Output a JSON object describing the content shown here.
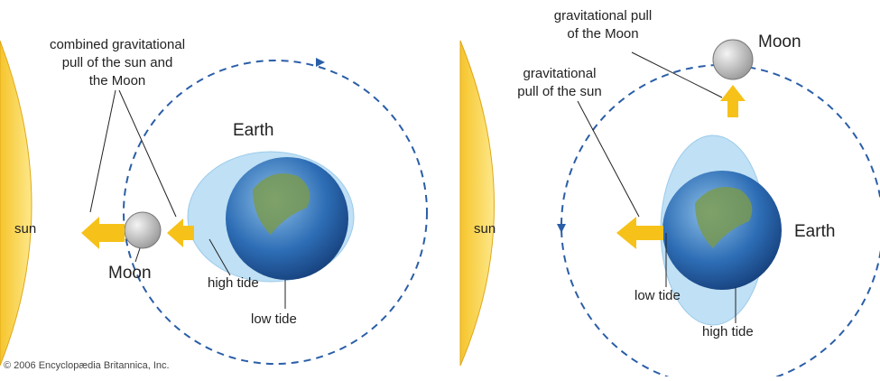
{
  "left": {
    "pull_label": [
      "combined gravitational",
      "pull of the sun and",
      "the Moon"
    ],
    "earth": "Earth",
    "sun": "sun",
    "moon": "Moon",
    "high_tide": "high tide",
    "low_tide": "low tide"
  },
  "right": {
    "moon_pull_label": [
      "gravitational pull",
      "of the Moon"
    ],
    "moon": "Moon",
    "sun_pull_label": [
      "gravitational",
      "pull of the sun"
    ],
    "sun": "sun",
    "earth": "Earth",
    "low_tide": "low tide",
    "high_tide": "high tide"
  },
  "footer": "© 2006 Encyclopædia Britannica, Inc."
}
